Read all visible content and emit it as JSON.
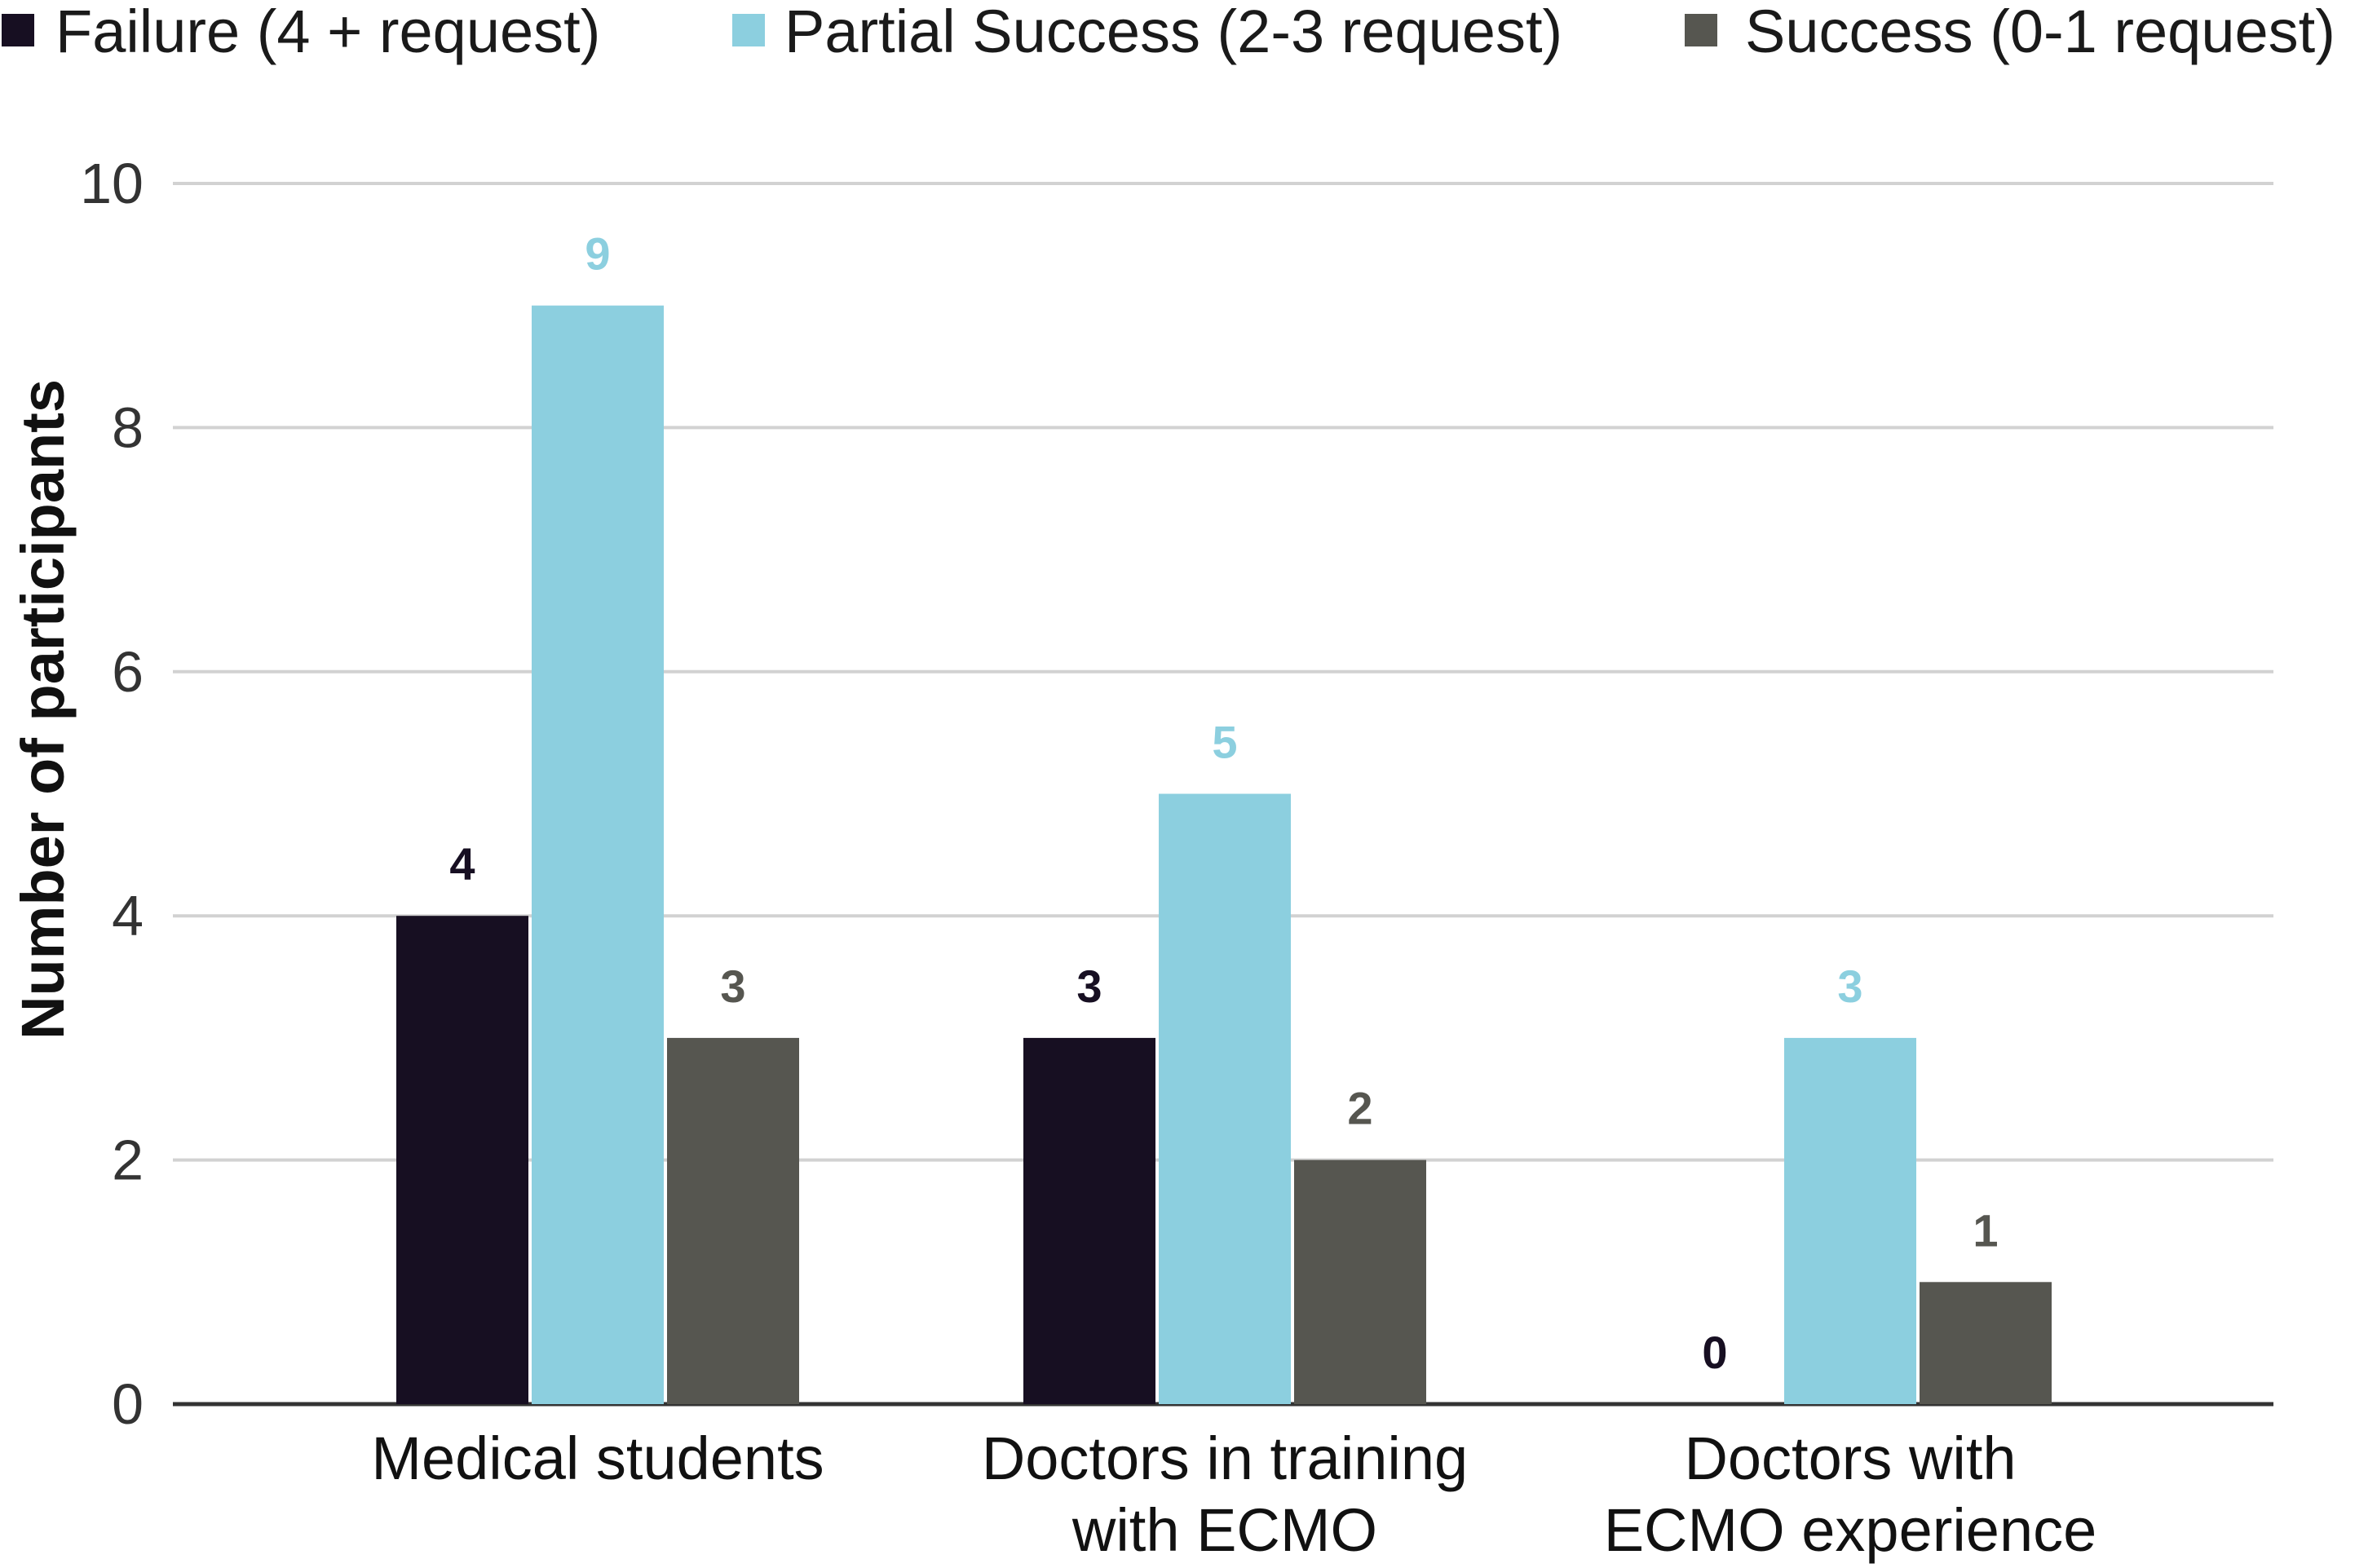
{
  "chart_data": {
    "type": "bar",
    "title": "",
    "xlabel": "",
    "ylabel": "Number of participants",
    "ylim": [
      0,
      10
    ],
    "yticks": [
      "0",
      "2",
      "4",
      "6",
      "8",
      "10"
    ],
    "grid": true,
    "legend_position": "top",
    "categories": [
      [
        "Medical students"
      ],
      [
        "Doctors in training",
        "with ECMO"
      ],
      [
        "Doctors with",
        "ECMO experience"
      ]
    ],
    "series": [
      {
        "name": "Failure (4 + request)",
        "color": "#170f22",
        "label_color": "#170f22",
        "values": [
          4,
          3,
          0
        ]
      },
      {
        "name": "Partial Success (2-3 request)",
        "color": "#8ccfdf",
        "label_color": "#8ccfdf",
        "values": [
          9,
          5,
          3
        ]
      },
      {
        "name": "Success (0-1 request)",
        "color": "#565650",
        "label_color": "#565650",
        "values": [
          3,
          2,
          1
        ]
      }
    ]
  }
}
